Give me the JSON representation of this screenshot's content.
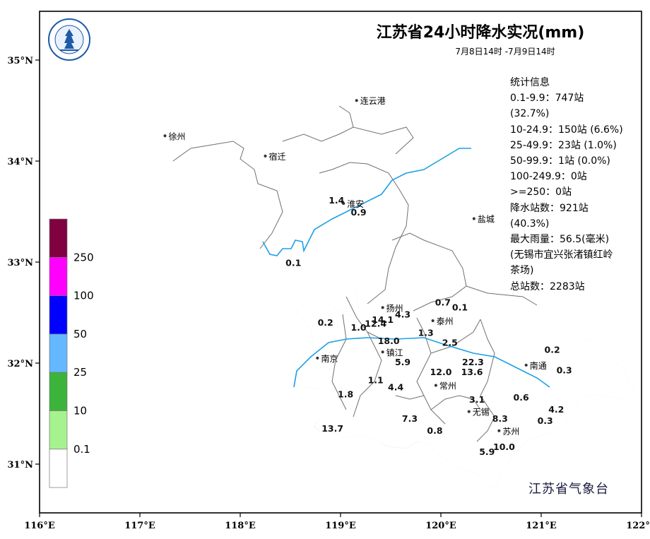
{
  "title": "江苏省24小时降水实况(mm)",
  "subtitle": "7月8日14时 -7月9日14时",
  "agency": "江苏省气象台",
  "logo_icon": "meteorological-bureau-seal-icon",
  "logo_text": "江苏省气象台",
  "stats": {
    "header": "统计信息",
    "lines": [
      "0.1-9.9：747站",
      "(32.7%)",
      "10-24.9：150站 (6.6%)",
      "25-49.9：23站 (1.0%)",
      "50-99.9：1站 (0.0%)",
      "100-249.9：0站",
      ">=250：0站",
      "降水站数：921站",
      "(40.3%)",
      "最大雨量：56.5(毫米)",
      "(无锡市宜兴张渚镇红岭",
      "茶场)",
      "总站数：2283站"
    ]
  },
  "legend": {
    "labels": [
      "250",
      "100",
      "50",
      "25",
      "10",
      "0.1"
    ],
    "colors": [
      "#800040",
      "#ff00ff",
      "#0000ff",
      "#63b8ff",
      "#3cb43c",
      "#a6f28f",
      "#ffffff"
    ]
  },
  "axes": {
    "x_ticks": [
      "116°E",
      "117°E",
      "118°E",
      "119°E",
      "120°E",
      "121°E",
      "122°E"
    ],
    "y_ticks": [
      "35°N",
      "34°N",
      "33°N",
      "32°N",
      "31°N"
    ],
    "lon_range": [
      116,
      122
    ],
    "lat_range": [
      30.5,
      35.5
    ]
  },
  "cities": [
    {
      "name": "连云港",
      "lon": 119.16,
      "lat": 34.6
    },
    {
      "name": "徐州",
      "lon": 117.25,
      "lat": 34.25
    },
    {
      "name": "宿迁",
      "lon": 118.25,
      "lat": 34.05
    },
    {
      "name": "淮安",
      "lon": 119.03,
      "lat": 33.58
    },
    {
      "name": "盐城",
      "lon": 120.33,
      "lat": 33.43
    },
    {
      "name": "扬州",
      "lon": 119.42,
      "lat": 32.55
    },
    {
      "name": "泰州",
      "lon": 119.92,
      "lat": 32.42
    },
    {
      "name": "南京",
      "lon": 118.77,
      "lat": 32.05
    },
    {
      "name": "镇江",
      "lon": 119.42,
      "lat": 32.11
    },
    {
      "name": "常州",
      "lon": 119.95,
      "lat": 31.78
    },
    {
      "name": "南通",
      "lon": 120.85,
      "lat": 31.98
    },
    {
      "name": "无锡",
      "lon": 120.28,
      "lat": 31.52
    },
    {
      "name": "苏州",
      "lon": 120.58,
      "lat": 31.33
    }
  ],
  "rain_values": [
    {
      "v": "1.4",
      "lon": 118.96,
      "lat": 33.58
    },
    {
      "v": "0.9",
      "lon": 119.18,
      "lat": 33.46
    },
    {
      "v": "0.1",
      "lon": 118.53,
      "lat": 32.96
    },
    {
      "v": "0.7",
      "lon": 120.02,
      "lat": 32.57
    },
    {
      "v": "0.1",
      "lon": 120.19,
      "lat": 32.52
    },
    {
      "v": "4.3",
      "lon": 119.62,
      "lat": 32.45
    },
    {
      "v": "14.1",
      "lon": 119.42,
      "lat": 32.4
    },
    {
      "v": "12.4",
      "lon": 119.35,
      "lat": 32.36
    },
    {
      "v": "1.0",
      "lon": 119.18,
      "lat": 32.32
    },
    {
      "v": "0.2",
      "lon": 118.85,
      "lat": 32.37
    },
    {
      "v": "1.3",
      "lon": 119.85,
      "lat": 32.27
    },
    {
      "v": "18.0",
      "lon": 119.48,
      "lat": 32.19
    },
    {
      "v": "2.5",
      "lon": 120.09,
      "lat": 32.17
    },
    {
      "v": "5.9",
      "lon": 119.62,
      "lat": 31.98
    },
    {
      "v": "22.3",
      "lon": 120.32,
      "lat": 31.98
    },
    {
      "v": "13.6",
      "lon": 120.31,
      "lat": 31.88
    },
    {
      "v": "12.0",
      "lon": 120.0,
      "lat": 31.88
    },
    {
      "v": "1.1",
      "lon": 119.35,
      "lat": 31.8
    },
    {
      "v": "4.4",
      "lon": 119.55,
      "lat": 31.73
    },
    {
      "v": "1.8",
      "lon": 119.05,
      "lat": 31.66
    },
    {
      "v": "0.2",
      "lon": 121.11,
      "lat": 32.1
    },
    {
      "v": "0.3",
      "lon": 121.23,
      "lat": 31.9
    },
    {
      "v": "0.6",
      "lon": 120.8,
      "lat": 31.63
    },
    {
      "v": "3.1",
      "lon": 120.36,
      "lat": 31.61
    },
    {
      "v": "4.2",
      "lon": 121.15,
      "lat": 31.51
    },
    {
      "v": "8.3",
      "lon": 120.59,
      "lat": 31.42
    },
    {
      "v": "0.3",
      "lon": 121.04,
      "lat": 31.4
    },
    {
      "v": "7.3",
      "lon": 119.69,
      "lat": 31.42
    },
    {
      "v": "0.8",
      "lon": 119.94,
      "lat": 31.3
    },
    {
      "v": "13.7",
      "lon": 118.92,
      "lat": 31.32
    },
    {
      "v": "10.0",
      "lon": 120.63,
      "lat": 31.14
    },
    {
      "v": "5.9",
      "lon": 120.46,
      "lat": 31.09
    }
  ]
}
